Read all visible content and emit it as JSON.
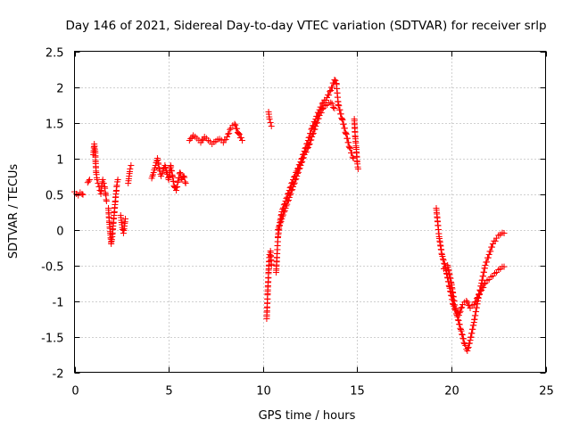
{
  "chart_data": {
    "type": "scatter",
    "title": "Day 146 of 2021, Sidereal Day-to-day VTEC variation (SDTVAR) for receiver srlp",
    "xlabel": "GPS time / hours",
    "ylabel": "SDTVAR / TECUs",
    "xlim": [
      0,
      25
    ],
    "ylim": [
      -2,
      2.5
    ],
    "xticks": [
      "0",
      "5",
      "10",
      "15",
      "20",
      "25"
    ],
    "yticks": [
      "-2",
      "-1.5",
      "-1",
      "-0.5",
      "0",
      "0.5",
      "1",
      "1.5",
      "2",
      "2.5"
    ],
    "grid": true,
    "marker": "plus",
    "color": "#ff0000",
    "segments": [
      {
        "name": "seg-1",
        "x": [
          0.0,
          0.1,
          0.2,
          0.3,
          0.4,
          0.45
        ],
        "y": [
          0.53,
          0.5,
          0.48,
          0.52,
          0.5,
          0.49
        ]
      },
      {
        "name": "seg-2",
        "x": [
          0.7,
          0.75,
          0.8
        ],
        "y": [
          0.66,
          0.68,
          0.7
        ]
      },
      {
        "name": "seg-3",
        "x": [
          1.0,
          1.05,
          1.1,
          1.12,
          1.15,
          1.2,
          1.25,
          1.3,
          1.35,
          1.4,
          1.45,
          1.5,
          1.55,
          1.6,
          1.65,
          1.7
        ],
        "y": [
          1.05,
          1.2,
          1.1,
          0.95,
          0.8,
          0.7,
          0.65,
          0.6,
          0.55,
          0.5,
          0.62,
          0.7,
          0.65,
          0.6,
          0.5,
          0.4
        ]
      },
      {
        "name": "seg-4",
        "x": [
          1.8,
          1.85,
          1.9,
          1.95,
          2.0,
          2.05,
          2.1,
          2.15,
          2.2,
          2.25,
          2.3
        ],
        "y": [
          0.3,
          0.1,
          -0.05,
          -0.2,
          -0.1,
          0.05,
          0.2,
          0.35,
          0.5,
          0.62,
          0.7
        ]
      },
      {
        "name": "seg-5",
        "x": [
          2.45,
          2.5,
          2.55,
          2.6,
          2.65,
          2.7
        ],
        "y": [
          0.2,
          0.1,
          0.0,
          -0.05,
          0.05,
          0.15
        ]
      },
      {
        "name": "seg-6",
        "x": [
          2.85,
          2.9,
          2.95,
          3.0
        ],
        "y": [
          0.65,
          0.75,
          0.85,
          0.9
        ]
      },
      {
        "name": "seg-7",
        "x": [
          4.1,
          4.2,
          4.3,
          4.4,
          4.5,
          4.6,
          4.7,
          4.8,
          4.9,
          5.0,
          5.1,
          5.2,
          5.3,
          5.4,
          5.5,
          5.6,
          5.7,
          5.8,
          5.9
        ],
        "y": [
          0.72,
          0.8,
          0.9,
          1.0,
          0.85,
          0.75,
          0.82,
          0.9,
          0.8,
          0.7,
          0.9,
          0.75,
          0.6,
          0.55,
          0.68,
          0.8,
          0.7,
          0.75,
          0.65
        ]
      },
      {
        "name": "seg-8",
        "x": [
          6.1,
          6.3,
          6.5,
          6.7,
          6.9,
          7.1,
          7.3,
          7.5,
          7.7,
          7.9,
          8.1,
          8.3,
          8.5,
          8.7,
          8.9
        ],
        "y": [
          1.25,
          1.32,
          1.28,
          1.22,
          1.3,
          1.25,
          1.2,
          1.24,
          1.27,
          1.22,
          1.3,
          1.42,
          1.48,
          1.35,
          1.25
        ]
      },
      {
        "name": "seg-9",
        "x": [
          10.2,
          10.25,
          10.3,
          10.35,
          10.4,
          10.45
        ],
        "y": [
          -1.25,
          -0.9,
          -0.6,
          -0.35,
          -0.3,
          -0.5
        ]
      },
      {
        "name": "seg-10",
        "x": [
          10.3,
          10.35,
          10.4,
          10.45
        ],
        "y": [
          1.65,
          1.55,
          1.5,
          1.45
        ]
      },
      {
        "name": "seg-11",
        "x": [
          10.7,
          10.8,
          10.9,
          11.0,
          11.2,
          11.4,
          11.6,
          11.8,
          12.0,
          12.2,
          12.4,
          12.6,
          12.8,
          13.0,
          13.2,
          13.4,
          13.6,
          13.8,
          13.9,
          14.0,
          14.2,
          14.4,
          14.6,
          14.8
        ],
        "y": [
          -0.6,
          -0.1,
          0.1,
          0.25,
          0.4,
          0.55,
          0.7,
          0.82,
          0.95,
          1.1,
          1.25,
          1.42,
          1.55,
          1.68,
          1.78,
          1.85,
          1.95,
          2.1,
          2.05,
          1.75,
          1.55,
          1.35,
          1.15,
          1.0
        ]
      },
      {
        "name": "seg-12",
        "x": [
          10.8,
          11.0,
          11.2,
          11.4,
          11.6,
          11.8,
          12.0,
          12.2,
          12.4,
          12.6,
          12.8,
          13.0,
          13.2,
          13.4,
          13.6,
          13.8
        ],
        "y": [
          0.0,
          0.15,
          0.3,
          0.45,
          0.6,
          0.75,
          0.9,
          1.05,
          1.15,
          1.3,
          1.45,
          1.6,
          1.7,
          1.75,
          1.78,
          1.7
        ]
      },
      {
        "name": "seg-13",
        "x": [
          14.85,
          14.9,
          14.95,
          15.0,
          15.05
        ],
        "y": [
          1.55,
          1.3,
          1.15,
          0.95,
          0.85
        ]
      },
      {
        "name": "seg-14",
        "x": [
          19.2,
          19.35,
          19.5,
          19.7,
          19.9,
          20.1,
          20.3,
          20.5,
          20.7,
          20.85,
          21.0,
          21.2,
          21.4,
          21.6,
          21.8,
          22.0,
          22.2,
          22.4,
          22.6,
          22.8
        ],
        "y": [
          0.3,
          -0.1,
          -0.35,
          -0.55,
          -0.8,
          -1.05,
          -1.2,
          -1.4,
          -1.6,
          -1.7,
          -1.55,
          -1.3,
          -1.0,
          -0.75,
          -0.5,
          -0.35,
          -0.2,
          -0.12,
          -0.07,
          -0.05
        ]
      },
      {
        "name": "seg-15",
        "x": [
          19.6,
          19.8,
          20.0,
          20.2,
          20.4,
          20.6,
          20.8,
          21.0,
          21.2,
          21.4,
          21.6,
          21.8,
          22.0,
          22.2,
          22.4,
          22.6,
          22.8
        ],
        "y": [
          -0.55,
          -0.5,
          -0.75,
          -1.1,
          -1.2,
          -1.05,
          -1.0,
          -1.1,
          -1.05,
          -0.95,
          -0.85,
          -0.75,
          -0.7,
          -0.65,
          -0.6,
          -0.55,
          -0.52
        ]
      }
    ]
  }
}
